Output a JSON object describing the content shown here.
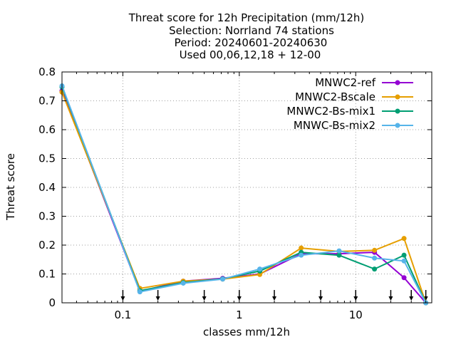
{
  "chart_data": {
    "type": "line",
    "title_lines": [
      "Threat score  for 12h Precipitation (mm/12h)",
      "Selection: Norrland     74 stations",
      "Period: 20240601-20240630",
      "Used 00,06,12,18 + 12-00"
    ],
    "xlabel": "classes mm/12h",
    "ylabel": "Threat score",
    "x_scale": "log",
    "xlim": [
      0.03,
      45
    ],
    "ylim": [
      0,
      0.8
    ],
    "x_ticks": [
      0.1,
      1,
      10
    ],
    "x_tick_labels": [
      "0.1",
      "1",
      "10"
    ],
    "y_ticks": [
      0,
      0.1,
      0.2,
      0.3,
      0.4,
      0.5,
      0.6,
      0.7,
      0.8
    ],
    "y_tick_labels": [
      "0",
      "0.1",
      "0.2",
      "0.3",
      "0.4",
      "0.5",
      "0.6",
      "0.7",
      "0.8"
    ],
    "grid": true,
    "legend_position": "top-right",
    "class_limits": [
      0.1,
      0.2,
      0.5,
      1,
      2,
      5,
      10,
      20,
      30,
      40
    ],
    "series": [
      {
        "name": "MNWC2-ref",
        "color": "#9400d3",
        "marker": "circle",
        "x": [
          0.03,
          0.14,
          0.33,
          0.72,
          1.5,
          3.4,
          7.2,
          14.5,
          26,
          40
        ],
        "y": [
          0.735,
          0.04,
          0.075,
          0.085,
          0.1,
          0.17,
          0.17,
          0.175,
          0.087,
          0.0
        ]
      },
      {
        "name": "MNWC2-Bscale",
        "color": "#e69f00",
        "marker": "circle",
        "x": [
          0.03,
          0.14,
          0.33,
          0.72,
          1.5,
          3.4,
          7.2,
          14.5,
          26,
          40
        ],
        "y": [
          0.73,
          0.05,
          0.075,
          0.082,
          0.098,
          0.19,
          0.178,
          0.182,
          0.223,
          0.0
        ]
      },
      {
        "name": "MNWC2-Bs-mix1",
        "color": "#009e73",
        "marker": "circle",
        "x": [
          0.03,
          0.14,
          0.33,
          0.72,
          1.5,
          3.4,
          7.2,
          14.5,
          26,
          40
        ],
        "y": [
          0.748,
          0.042,
          0.07,
          0.083,
          0.11,
          0.175,
          0.165,
          0.117,
          0.165,
          0.0
        ]
      },
      {
        "name": "MNWC-Bs-mix2",
        "color": "#56b4e9",
        "marker": "circle",
        "x": [
          0.03,
          0.14,
          0.33,
          0.72,
          1.5,
          3.4,
          7.2,
          14.5,
          26,
          40
        ],
        "y": [
          0.752,
          0.038,
          0.068,
          0.082,
          0.117,
          0.165,
          0.18,
          0.155,
          0.145,
          0.0
        ]
      }
    ]
  }
}
